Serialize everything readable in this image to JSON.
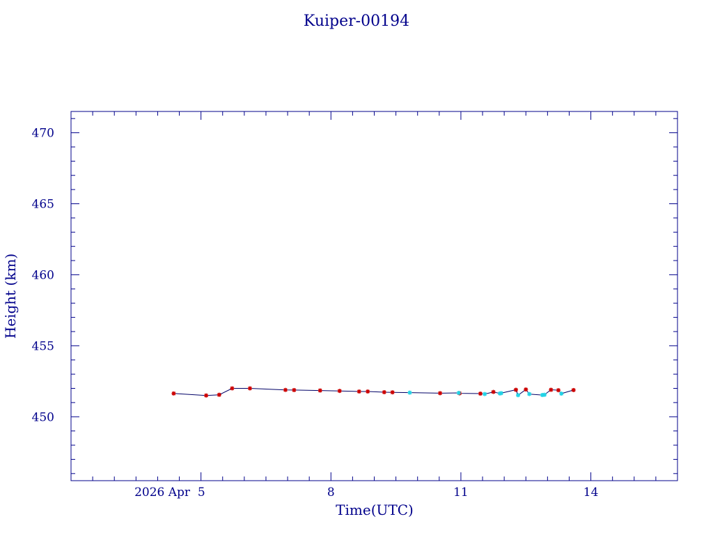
{
  "chart_data": {
    "type": "scatter",
    "title": "Kuiper-00194",
    "xlabel": "Time(UTC)",
    "ylabel": "Height (km)",
    "x_unit": "days (2026 April)",
    "xlim": [
      2.0,
      16.0
    ],
    "ylim": [
      445.5,
      471.5
    ],
    "x_ticks": [
      {
        "value": 5,
        "label": "2026 Apr  5"
      },
      {
        "value": 8,
        "label": "8"
      },
      {
        "value": 11,
        "label": "11"
      },
      {
        "value": 14,
        "label": "14"
      }
    ],
    "y_ticks": [
      450,
      455,
      460,
      465,
      470
    ],
    "grid": false,
    "colors": {
      "axes": "#00008b",
      "line": "#000066",
      "marker_red": "#cc0000",
      "marker_cyan": "#22d3e6"
    },
    "series": [
      {
        "marker": "red-star",
        "color": "#cc0000",
        "points": [
          [
            4.37,
            451.64
          ],
          [
            5.12,
            451.5
          ],
          [
            5.42,
            451.55
          ],
          [
            5.72,
            452.0
          ],
          [
            6.13,
            452.0
          ],
          [
            6.95,
            451.89
          ],
          [
            7.15,
            451.88
          ],
          [
            7.75,
            451.85
          ],
          [
            8.2,
            451.82
          ],
          [
            8.65,
            451.78
          ],
          [
            8.85,
            451.78
          ],
          [
            9.23,
            451.73
          ],
          [
            9.42,
            451.72
          ],
          [
            10.52,
            451.66
          ],
          [
            10.97,
            451.65
          ],
          [
            11.45,
            451.63
          ],
          [
            11.75,
            451.75
          ],
          [
            12.27,
            451.9
          ],
          [
            12.5,
            451.92
          ],
          [
            13.08,
            451.9
          ],
          [
            13.25,
            451.87
          ],
          [
            13.6,
            451.88
          ]
        ]
      },
      {
        "marker": "cyan-star",
        "color": "#22d3e6",
        "points": [
          [
            9.82,
            451.7
          ],
          [
            11.9,
            451.64
          ],
          [
            11.55,
            451.6
          ],
          [
            12.32,
            451.52
          ],
          [
            12.58,
            451.6
          ],
          [
            12.93,
            451.55
          ],
          [
            13.32,
            451.63
          ],
          [
            11.93,
            451.66
          ],
          [
            10.95,
            451.68
          ],
          [
            12.88,
            451.53
          ]
        ]
      }
    ],
    "line_path": [
      [
        4.37,
        451.64
      ],
      [
        5.12,
        451.5
      ],
      [
        5.42,
        451.55
      ],
      [
        5.72,
        452.0
      ],
      [
        6.13,
        452.0
      ],
      [
        6.95,
        451.89
      ],
      [
        7.15,
        451.88
      ],
      [
        7.75,
        451.85
      ],
      [
        8.2,
        451.82
      ],
      [
        8.65,
        451.78
      ],
      [
        8.85,
        451.78
      ],
      [
        9.23,
        451.73
      ],
      [
        9.42,
        451.72
      ],
      [
        9.82,
        451.7
      ],
      [
        10.52,
        451.66
      ],
      [
        10.95,
        451.68
      ],
      [
        10.97,
        451.65
      ],
      [
        11.45,
        451.63
      ],
      [
        11.55,
        451.6
      ],
      [
        11.75,
        451.75
      ],
      [
        11.9,
        451.64
      ],
      [
        11.93,
        451.66
      ],
      [
        12.27,
        451.9
      ],
      [
        12.32,
        451.52
      ],
      [
        12.5,
        451.92
      ],
      [
        12.58,
        451.6
      ],
      [
        12.88,
        451.53
      ],
      [
        12.93,
        451.55
      ],
      [
        13.08,
        451.9
      ],
      [
        13.25,
        451.87
      ],
      [
        13.32,
        451.63
      ],
      [
        13.6,
        451.88
      ]
    ]
  }
}
